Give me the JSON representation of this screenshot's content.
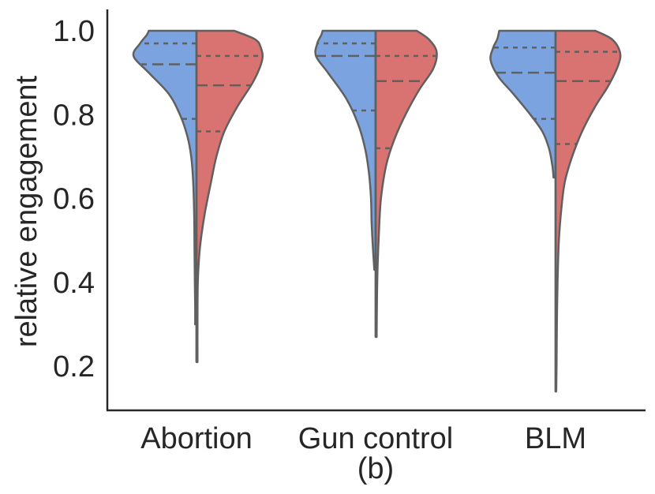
{
  "chart_data": {
    "type": "violin",
    "split": true,
    "ylabel": "relative engagement",
    "xlabel": "",
    "ylim": [
      0.1,
      1.04
    ],
    "yticks": [
      "0.2",
      "0.4",
      "0.6",
      "0.8",
      "1.0"
    ],
    "caption": "(b)",
    "colors": {
      "left": "#7BA3E0",
      "right": "#D97371",
      "stroke": "#606060",
      "axis": "#262626"
    },
    "categories": [
      "Abortion",
      "Gun control",
      "BLM"
    ],
    "groups": [
      {
        "category": "Abortion",
        "left": {
          "min": 0.3,
          "max": 1.0,
          "q1": 0.79,
          "median": 0.92,
          "q3": 0.97,
          "shape": [
            [
              0.3,
              0.02
            ],
            [
              0.34,
              0.02
            ],
            [
              0.4,
              0.025
            ],
            [
              0.48,
              0.03
            ],
            [
              0.56,
              0.035
            ],
            [
              0.64,
              0.05
            ],
            [
              0.7,
              0.08
            ],
            [
              0.75,
              0.14
            ],
            [
              0.8,
              0.25
            ],
            [
              0.85,
              0.42
            ],
            [
              0.9,
              0.72
            ],
            [
              0.94,
              0.95
            ],
            [
              0.97,
              0.85
            ],
            [
              0.99,
              0.75
            ],
            [
              1.0,
              0.72
            ]
          ]
        },
        "right": {
          "min": 0.21,
          "max": 1.0,
          "q1": 0.76,
          "median": 0.87,
          "q3": 0.94,
          "shape": [
            [
              0.21,
              0.015
            ],
            [
              0.3,
              0.015
            ],
            [
              0.4,
              0.02
            ],
            [
              0.48,
              0.05
            ],
            [
              0.56,
              0.12
            ],
            [
              0.64,
              0.22
            ],
            [
              0.7,
              0.3
            ],
            [
              0.76,
              0.42
            ],
            [
              0.82,
              0.62
            ],
            [
              0.88,
              0.86
            ],
            [
              0.93,
              0.99
            ],
            [
              0.96,
              0.97
            ],
            [
              0.98,
              0.88
            ],
            [
              1.0,
              0.57
            ]
          ]
        }
      },
      {
        "category": "Gun control",
        "left": {
          "min": 0.43,
          "max": 1.0,
          "q1": 0.81,
          "median": 0.94,
          "q3": 0.97,
          "shape": [
            [
              0.43,
              0.02
            ],
            [
              0.48,
              0.04
            ],
            [
              0.54,
              0.06
            ],
            [
              0.6,
              0.07
            ],
            [
              0.66,
              0.1
            ],
            [
              0.72,
              0.16
            ],
            [
              0.78,
              0.27
            ],
            [
              0.84,
              0.45
            ],
            [
              0.9,
              0.72
            ],
            [
              0.94,
              0.9
            ],
            [
              0.97,
              0.88
            ],
            [
              0.99,
              0.82
            ],
            [
              1.0,
              0.8
            ]
          ]
        },
        "right": {
          "min": 0.27,
          "max": 1.0,
          "q1": 0.72,
          "median": 0.88,
          "q3": 0.94,
          "shape": [
            [
              0.27,
              0.015
            ],
            [
              0.36,
              0.02
            ],
            [
              0.44,
              0.03
            ],
            [
              0.52,
              0.05
            ],
            [
              0.6,
              0.08
            ],
            [
              0.68,
              0.16
            ],
            [
              0.74,
              0.28
            ],
            [
              0.8,
              0.45
            ],
            [
              0.86,
              0.66
            ],
            [
              0.91,
              0.87
            ],
            [
              0.95,
              0.92
            ],
            [
              0.98,
              0.8
            ],
            [
              1.0,
              0.62
            ]
          ]
        }
      },
      {
        "category": "BLM",
        "left": {
          "min": 0.65,
          "max": 1.0,
          "q1": 0.79,
          "median": 0.9,
          "q3": 0.96,
          "shape": [
            [
              0.65,
              0.03
            ],
            [
              0.68,
              0.05
            ],
            [
              0.72,
              0.1
            ],
            [
              0.76,
              0.2
            ],
            [
              0.8,
              0.38
            ],
            [
              0.85,
              0.64
            ],
            [
              0.89,
              0.86
            ],
            [
              0.93,
              0.98
            ],
            [
              0.96,
              0.94
            ],
            [
              0.98,
              0.88
            ],
            [
              1.0,
              0.85
            ]
          ]
        },
        "right": {
          "min": 0.14,
          "max": 1.0,
          "q1": 0.73,
          "median": 0.88,
          "q3": 0.95,
          "shape": [
            [
              0.14,
              0.01
            ],
            [
              0.2,
              0.015
            ],
            [
              0.3,
              0.02
            ],
            [
              0.4,
              0.03
            ],
            [
              0.5,
              0.05
            ],
            [
              0.58,
              0.09
            ],
            [
              0.64,
              0.14
            ],
            [
              0.7,
              0.25
            ],
            [
              0.76,
              0.4
            ],
            [
              0.82,
              0.6
            ],
            [
              0.87,
              0.8
            ],
            [
              0.92,
              0.95
            ],
            [
              0.95,
              0.97
            ],
            [
              0.98,
              0.85
            ],
            [
              1.0,
              0.6
            ]
          ]
        }
      }
    ]
  }
}
